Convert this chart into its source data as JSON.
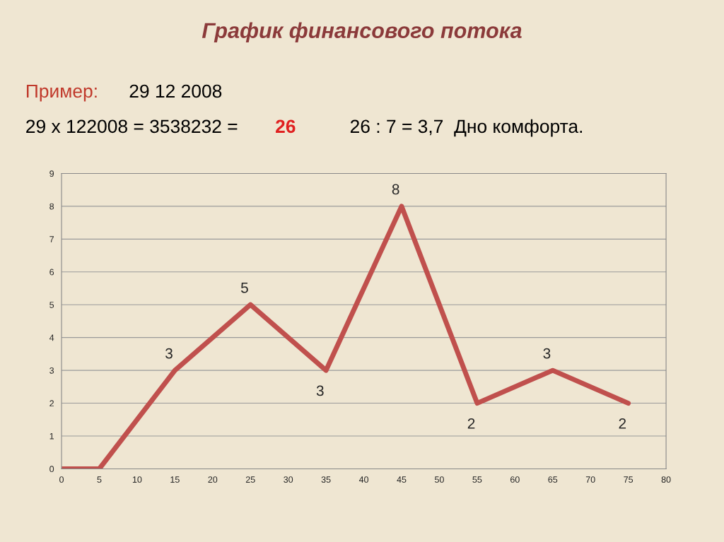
{
  "chart_data": {
    "type": "line",
    "title": "График финансового потока",
    "annotations": [
      "Пример:",
      "29 12 2008",
      "29 х 122008 = 3538232 =",
      "26",
      "26 : 7 = 3,7  Дно комфорта."
    ],
    "x": [
      0,
      5,
      15,
      25,
      35,
      45,
      55,
      65,
      75
    ],
    "series": [
      {
        "color": "#c0504d",
        "values": [
          0,
          0,
          3,
          5,
          3,
          8,
          2,
          3,
          2
        ],
        "value_labels": [
          null,
          null,
          "3",
          "5",
          "3",
          "8",
          "2",
          "3",
          "2"
        ]
      }
    ],
    "xlim": [
      0,
      80
    ],
    "xticks": [
      0,
      5,
      10,
      15,
      20,
      25,
      30,
      35,
      40,
      45,
      50,
      55,
      60,
      65,
      70,
      75,
      80
    ],
    "ylim": [
      0,
      9
    ],
    "yticks": [
      0,
      1,
      2,
      3,
      4,
      5,
      6,
      7,
      8,
      9
    ],
    "grid": "y",
    "marker": "none",
    "line_style": "solid"
  }
}
